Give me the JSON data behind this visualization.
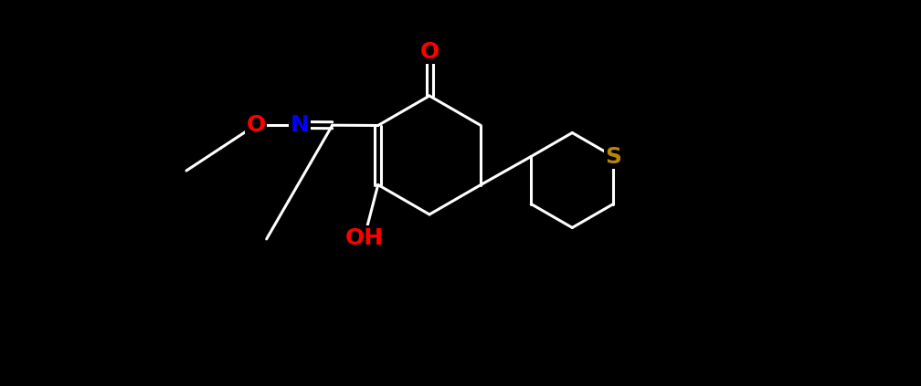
{
  "bg_color": "#000000",
  "bond_color": "#ffffff",
  "bond_width": 2.0,
  "atom_colors": {
    "O": "#ff0000",
    "N": "#0000ff",
    "S": "#b8860b",
    "C": "#ffffff",
    "OH": "#ff0000"
  },
  "label_fontsize": 16,
  "label_fontsize_hetero": 18
}
